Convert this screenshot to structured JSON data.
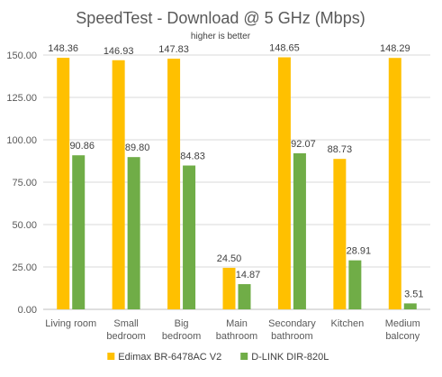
{
  "chart_data": {
    "type": "bar",
    "title": "SpeedTest - Download @ 5 GHz (Mbps)",
    "subtitle": "higher is better",
    "xlabel": "",
    "ylabel": "",
    "ylim": [
      0,
      150
    ],
    "yticks": [
      "0.00",
      "25.00",
      "50.00",
      "75.00",
      "100.00",
      "125.00",
      "150.00"
    ],
    "ytick_values": [
      0,
      25,
      50,
      75,
      100,
      125,
      150
    ],
    "grid": true,
    "legend_position": "bottom",
    "categories": [
      [
        "Living room"
      ],
      [
        "Small",
        "bedroom"
      ],
      [
        "Big",
        "bedroom"
      ],
      [
        "Main",
        "bathroom"
      ],
      [
        "Secondary",
        "bathroom"
      ],
      [
        "Kitchen"
      ],
      [
        "Medium",
        "balcony"
      ]
    ],
    "series": [
      {
        "name": "Edimax BR-6478AC V2",
        "color": "#ffc000",
        "values": [
          148.36,
          146.93,
          147.83,
          24.5,
          148.65,
          88.73,
          148.29
        ],
        "labels": [
          "148.36",
          "146.93",
          "147.83",
          "24.50",
          "148.65",
          "88.73",
          "148.29"
        ]
      },
      {
        "name": "D-LINK DIR-820L",
        "color": "#70ad47",
        "values": [
          90.86,
          89.8,
          84.83,
          14.87,
          92.07,
          28.91,
          3.51
        ],
        "labels": [
          "90.86",
          "89.80",
          "84.83",
          "14.87",
          "92.07",
          "28.91",
          "3.51"
        ]
      }
    ]
  }
}
